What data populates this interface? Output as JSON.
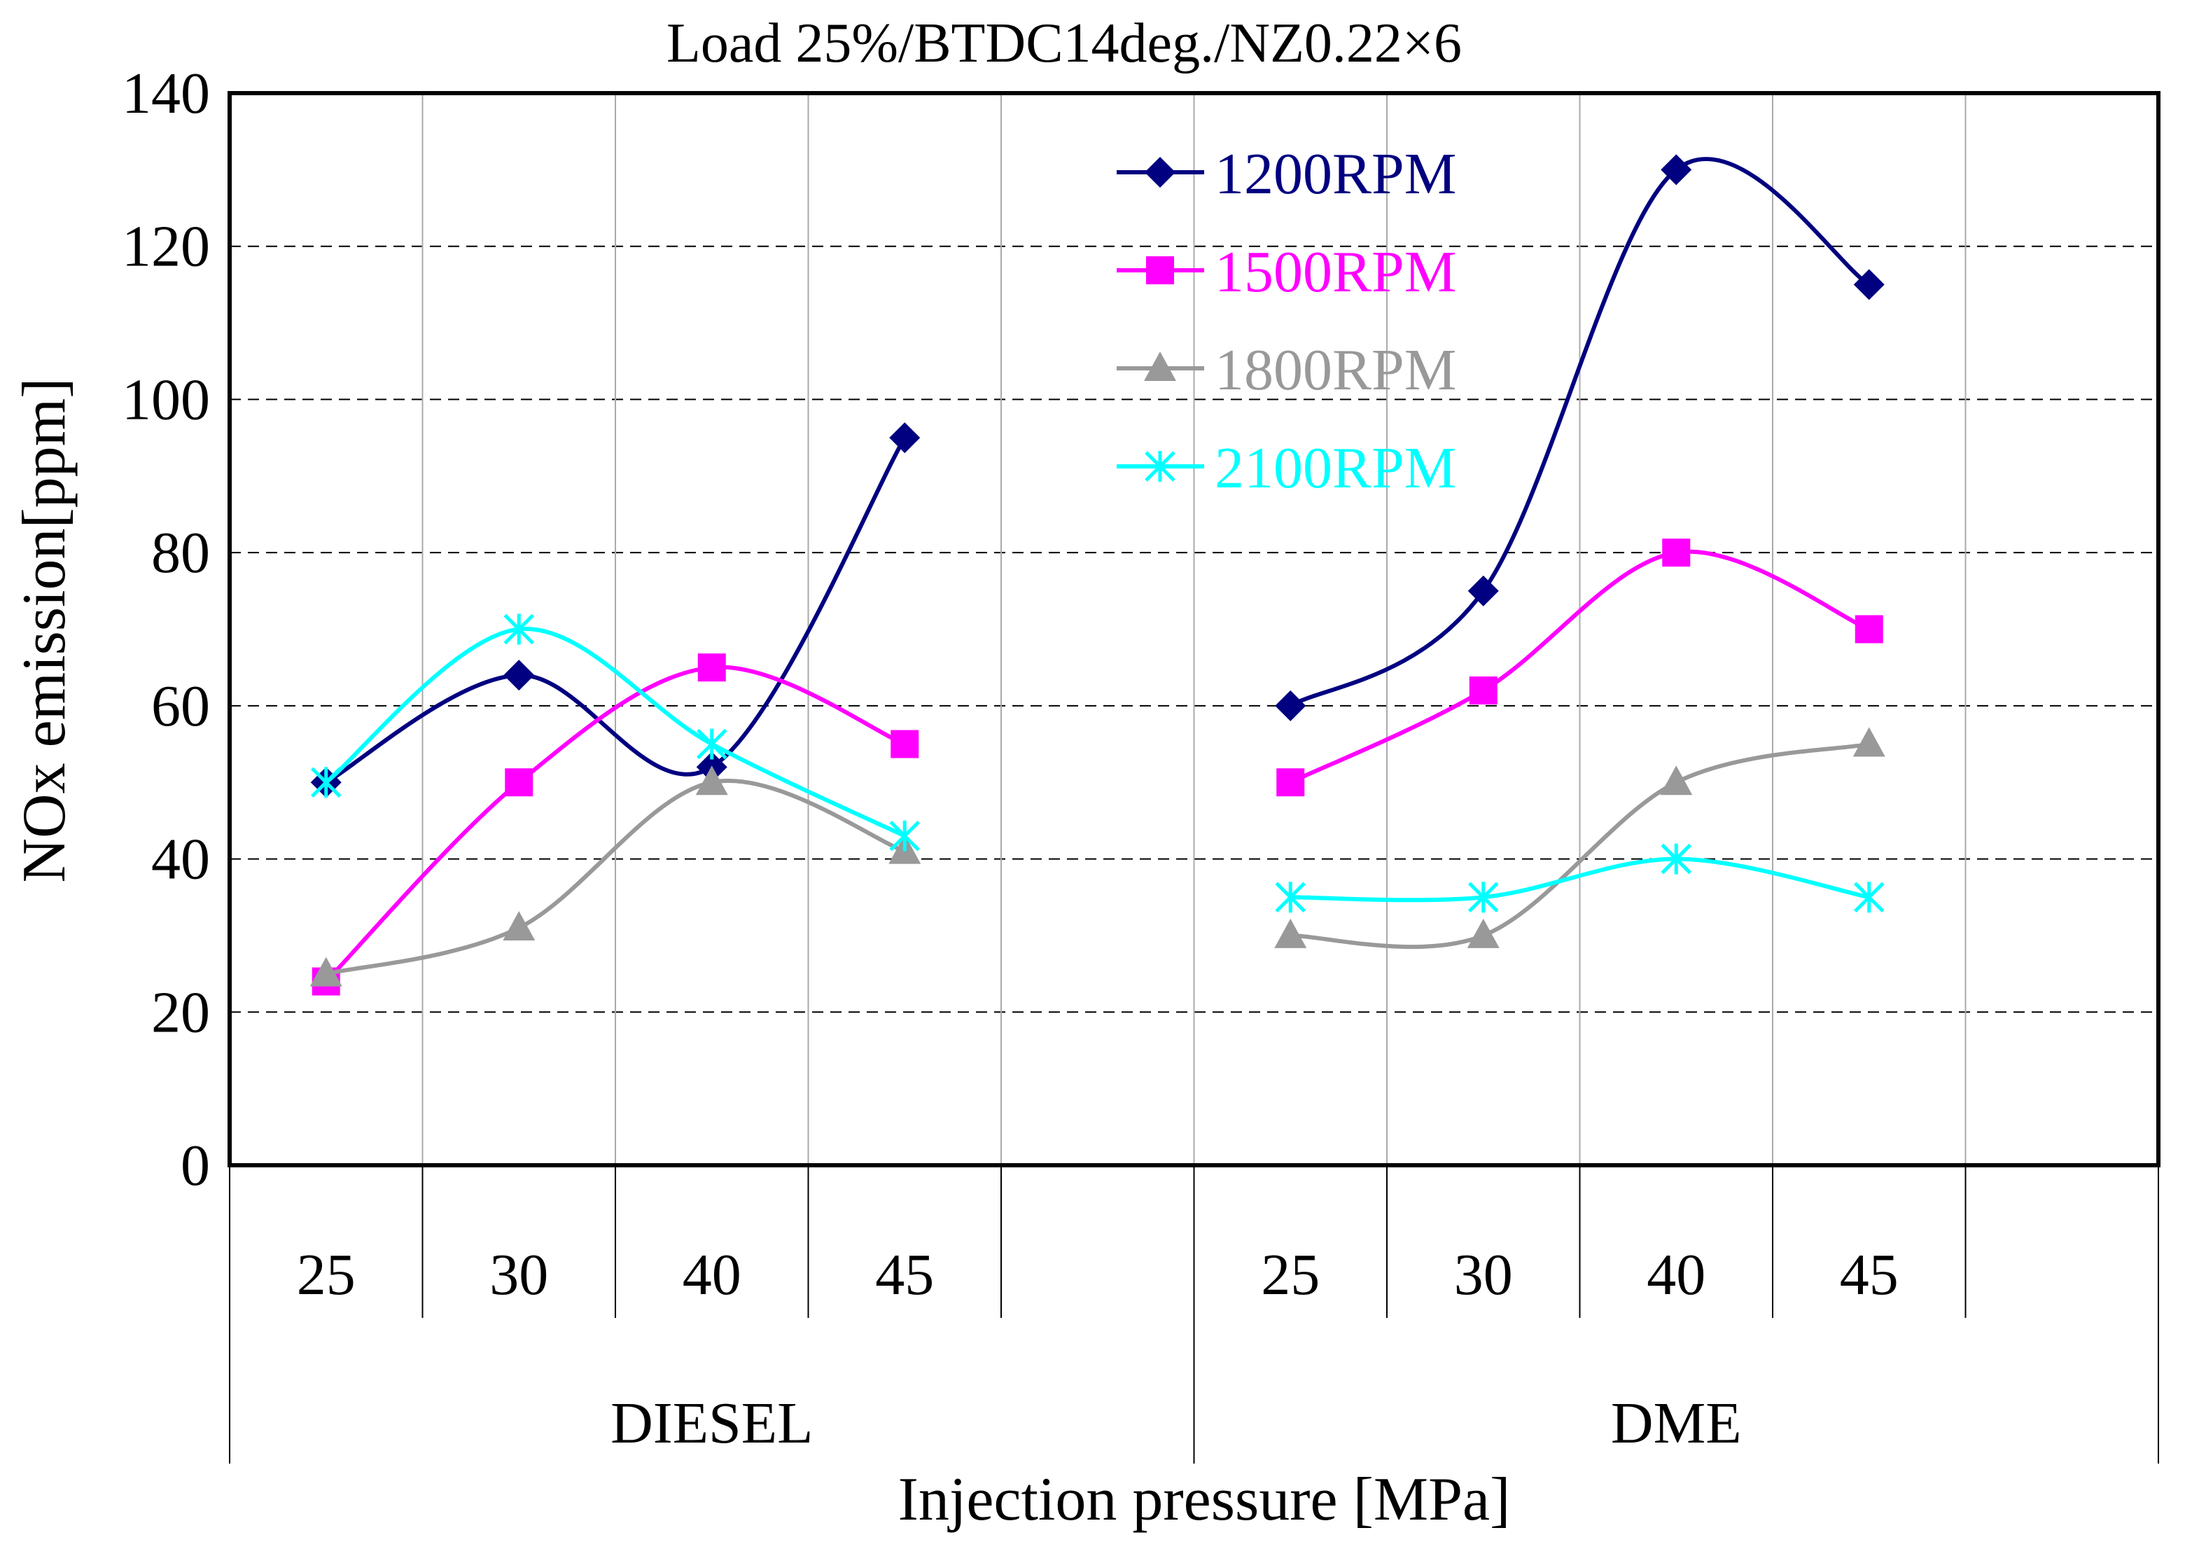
{
  "chart_data": {
    "type": "line",
    "title": "Load 25%/BTDC14deg./NZ0.22×6",
    "xlabel": "Injection pressure [MPa]",
    "ylabel": "NOx emission[ppm]",
    "ylim": [
      0,
      140
    ],
    "yticks": [
      0,
      20,
      40,
      60,
      80,
      100,
      120,
      140
    ],
    "groups": [
      {
        "name": "DIESEL",
        "categories": [
          "25",
          "30",
          "40",
          "45"
        ]
      },
      {
        "name": "DME",
        "categories": [
          "25",
          "30",
          "40",
          "45"
        ]
      }
    ],
    "series": [
      {
        "name": "1200RPM",
        "color": "#000080",
        "marker": "diamond",
        "groups": [
          [
            50,
            64,
            52,
            95
          ],
          [
            60,
            75,
            130,
            115
          ]
        ]
      },
      {
        "name": "1500RPM",
        "color": "#ff00ff",
        "marker": "square",
        "groups": [
          [
            24,
            50,
            65,
            55
          ],
          [
            50,
            62,
            80,
            70
          ]
        ]
      },
      {
        "name": "1800RPM",
        "color": "#999999",
        "marker": "triangle",
        "groups": [
          [
            25,
            31,
            50,
            41
          ],
          [
            30,
            30,
            50,
            55
          ]
        ]
      },
      {
        "name": "2100RPM",
        "color": "#00ffff",
        "marker": "x",
        "groups": [
          [
            50,
            70,
            55,
            43
          ],
          [
            35,
            35,
            40,
            35
          ]
        ]
      }
    ],
    "legend_position": "top-center",
    "grid": true
  }
}
